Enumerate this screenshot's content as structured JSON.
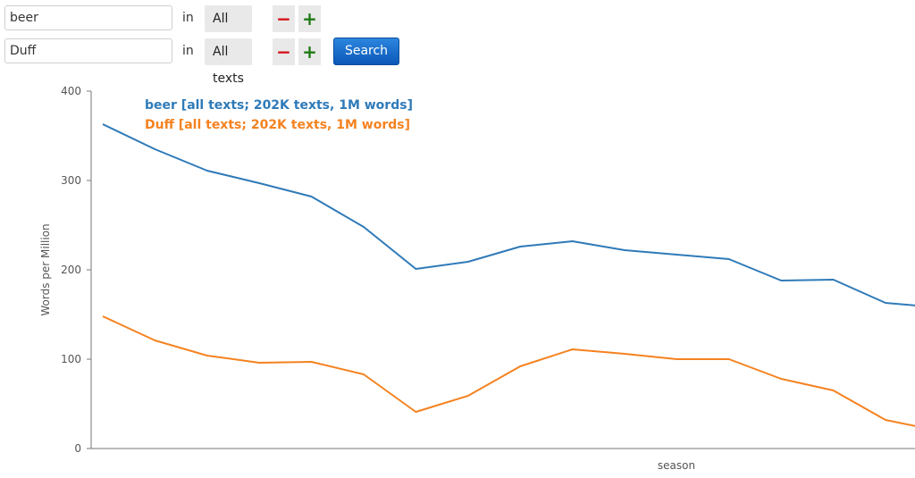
{
  "query": {
    "rows": [
      {
        "term": "beer",
        "in_label": "in",
        "corpus": "All texts",
        "minus": "−",
        "plus": "+"
      },
      {
        "term": "Duff",
        "in_label": "in",
        "corpus": "All texts",
        "minus": "−",
        "plus": "+"
      }
    ],
    "search_label": "Search"
  },
  "colors": {
    "beer": "#2f7ab8",
    "duff": "#f58220",
    "axis": "#777777",
    "minus": "#d6101a",
    "plus": "#1d7a14",
    "search": "#0a62c2"
  },
  "chart_data": {
    "type": "line",
    "xlabel": "season",
    "ylabel": "Words per Million",
    "ylim": [
      0,
      400
    ],
    "yticks": [
      0,
      100,
      200,
      300,
      400
    ],
    "grid": false,
    "legend_position": "top-left",
    "x": [
      1,
      2,
      3,
      4,
      5,
      6,
      7,
      8,
      9,
      10,
      11,
      12,
      13,
      14,
      15,
      16,
      17
    ],
    "series": [
      {
        "name": "beer [all texts; 202K texts, 1M words]",
        "color": "#2f7ab8",
        "values": [
          363,
          335,
          311,
          297,
          282,
          248,
          201,
          209,
          226,
          232,
          222,
          217,
          212,
          188,
          189,
          163,
          158
        ]
      },
      {
        "name": "Duff [all texts; 202K texts, 1M words]",
        "color": "#f58220",
        "values": [
          148,
          121,
          104,
          96,
          97,
          83,
          41,
          59,
          92,
          111,
          106,
          100,
          100,
          78,
          65,
          32,
          20
        ]
      }
    ]
  }
}
